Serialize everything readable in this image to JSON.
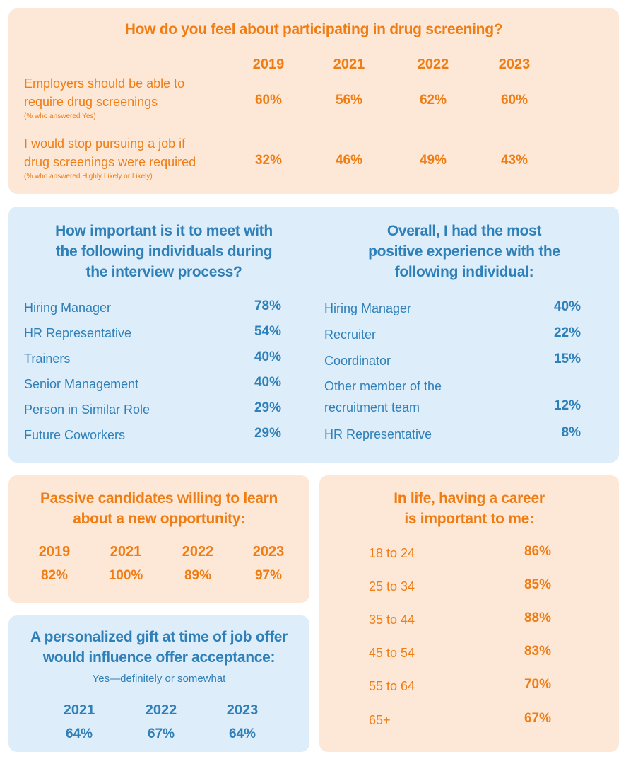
{
  "drug_screening": {
    "title": "How do you feel about participating in drug screening?",
    "years": [
      "2019",
      "2021",
      "2022",
      "2023"
    ],
    "rows": [
      {
        "label_line1": "Employers should be able to",
        "label_line2": "require drug screenings",
        "note": "(% who answered Yes)",
        "values": [
          "60%",
          "56%",
          "62%",
          "60%"
        ]
      },
      {
        "label_line1": "I would stop pursuing a job if",
        "label_line2": "drug screenings were required",
        "note": "(% who answered Highly Likely or Likely)",
        "values": [
          "32%",
          "46%",
          "49%",
          "43%"
        ]
      }
    ]
  },
  "interview_importance": {
    "title_line1": "How important is it to meet with",
    "title_line2": "the following individuals during",
    "title_line3": "the interview process?",
    "items": [
      {
        "label": "Hiring Manager",
        "value": "78%"
      },
      {
        "label": "HR Representative",
        "value": "54%"
      },
      {
        "label": "Trainers",
        "value": "40%"
      },
      {
        "label": "Senior Management",
        "value": "40%"
      },
      {
        "label": "Person in Similar Role",
        "value": "29%"
      },
      {
        "label": "Future Coworkers",
        "value": "29%"
      }
    ]
  },
  "positive_experience": {
    "title_line1": "Overall, I had the most",
    "title_line2": "positive experience with the",
    "title_line3": "following individual:",
    "items": [
      {
        "label": "Hiring Manager",
        "value": "40%"
      },
      {
        "label": "Recruiter",
        "value": "22%"
      },
      {
        "label": "Coordinator",
        "value": "15%"
      },
      {
        "label_line1": "Other member of the",
        "label_line2": "recruitment team",
        "value": "12%"
      },
      {
        "label": "HR Representative",
        "value": "8%"
      }
    ]
  },
  "passive_candidates": {
    "title_line1": "Passive candidates willing to learn",
    "title_line2": "about a new opportunity:",
    "years": [
      "2019",
      "2021",
      "2022",
      "2023"
    ],
    "values": [
      "82%",
      "100%",
      "89%",
      "97%"
    ]
  },
  "personalized_gift": {
    "title_line1": "A personalized gift at time of job offer",
    "title_line2": "would influence offer acceptance:",
    "subtitle": "Yes—definitely or somewhat",
    "years": [
      "2021",
      "2022",
      "2023"
    ],
    "values": [
      "64%",
      "67%",
      "64%"
    ]
  },
  "career_importance": {
    "title_line1": "In life, having a career",
    "title_line2": "is important to me:",
    "items": [
      {
        "label": "18 to 24",
        "value": "86%"
      },
      {
        "label": "25 to 34",
        "value": "85%"
      },
      {
        "label": "35 to 44",
        "value": "88%"
      },
      {
        "label": "45 to 54",
        "value": "83%"
      },
      {
        "label": "55 to 64",
        "value": "70%"
      },
      {
        "label": "65+",
        "value": "67%"
      }
    ]
  },
  "colors": {
    "orange": "#ef7d14",
    "blue": "#2f7fb8",
    "peach_bg": "#fde8d8",
    "blue_bg": "#ddeefa"
  }
}
